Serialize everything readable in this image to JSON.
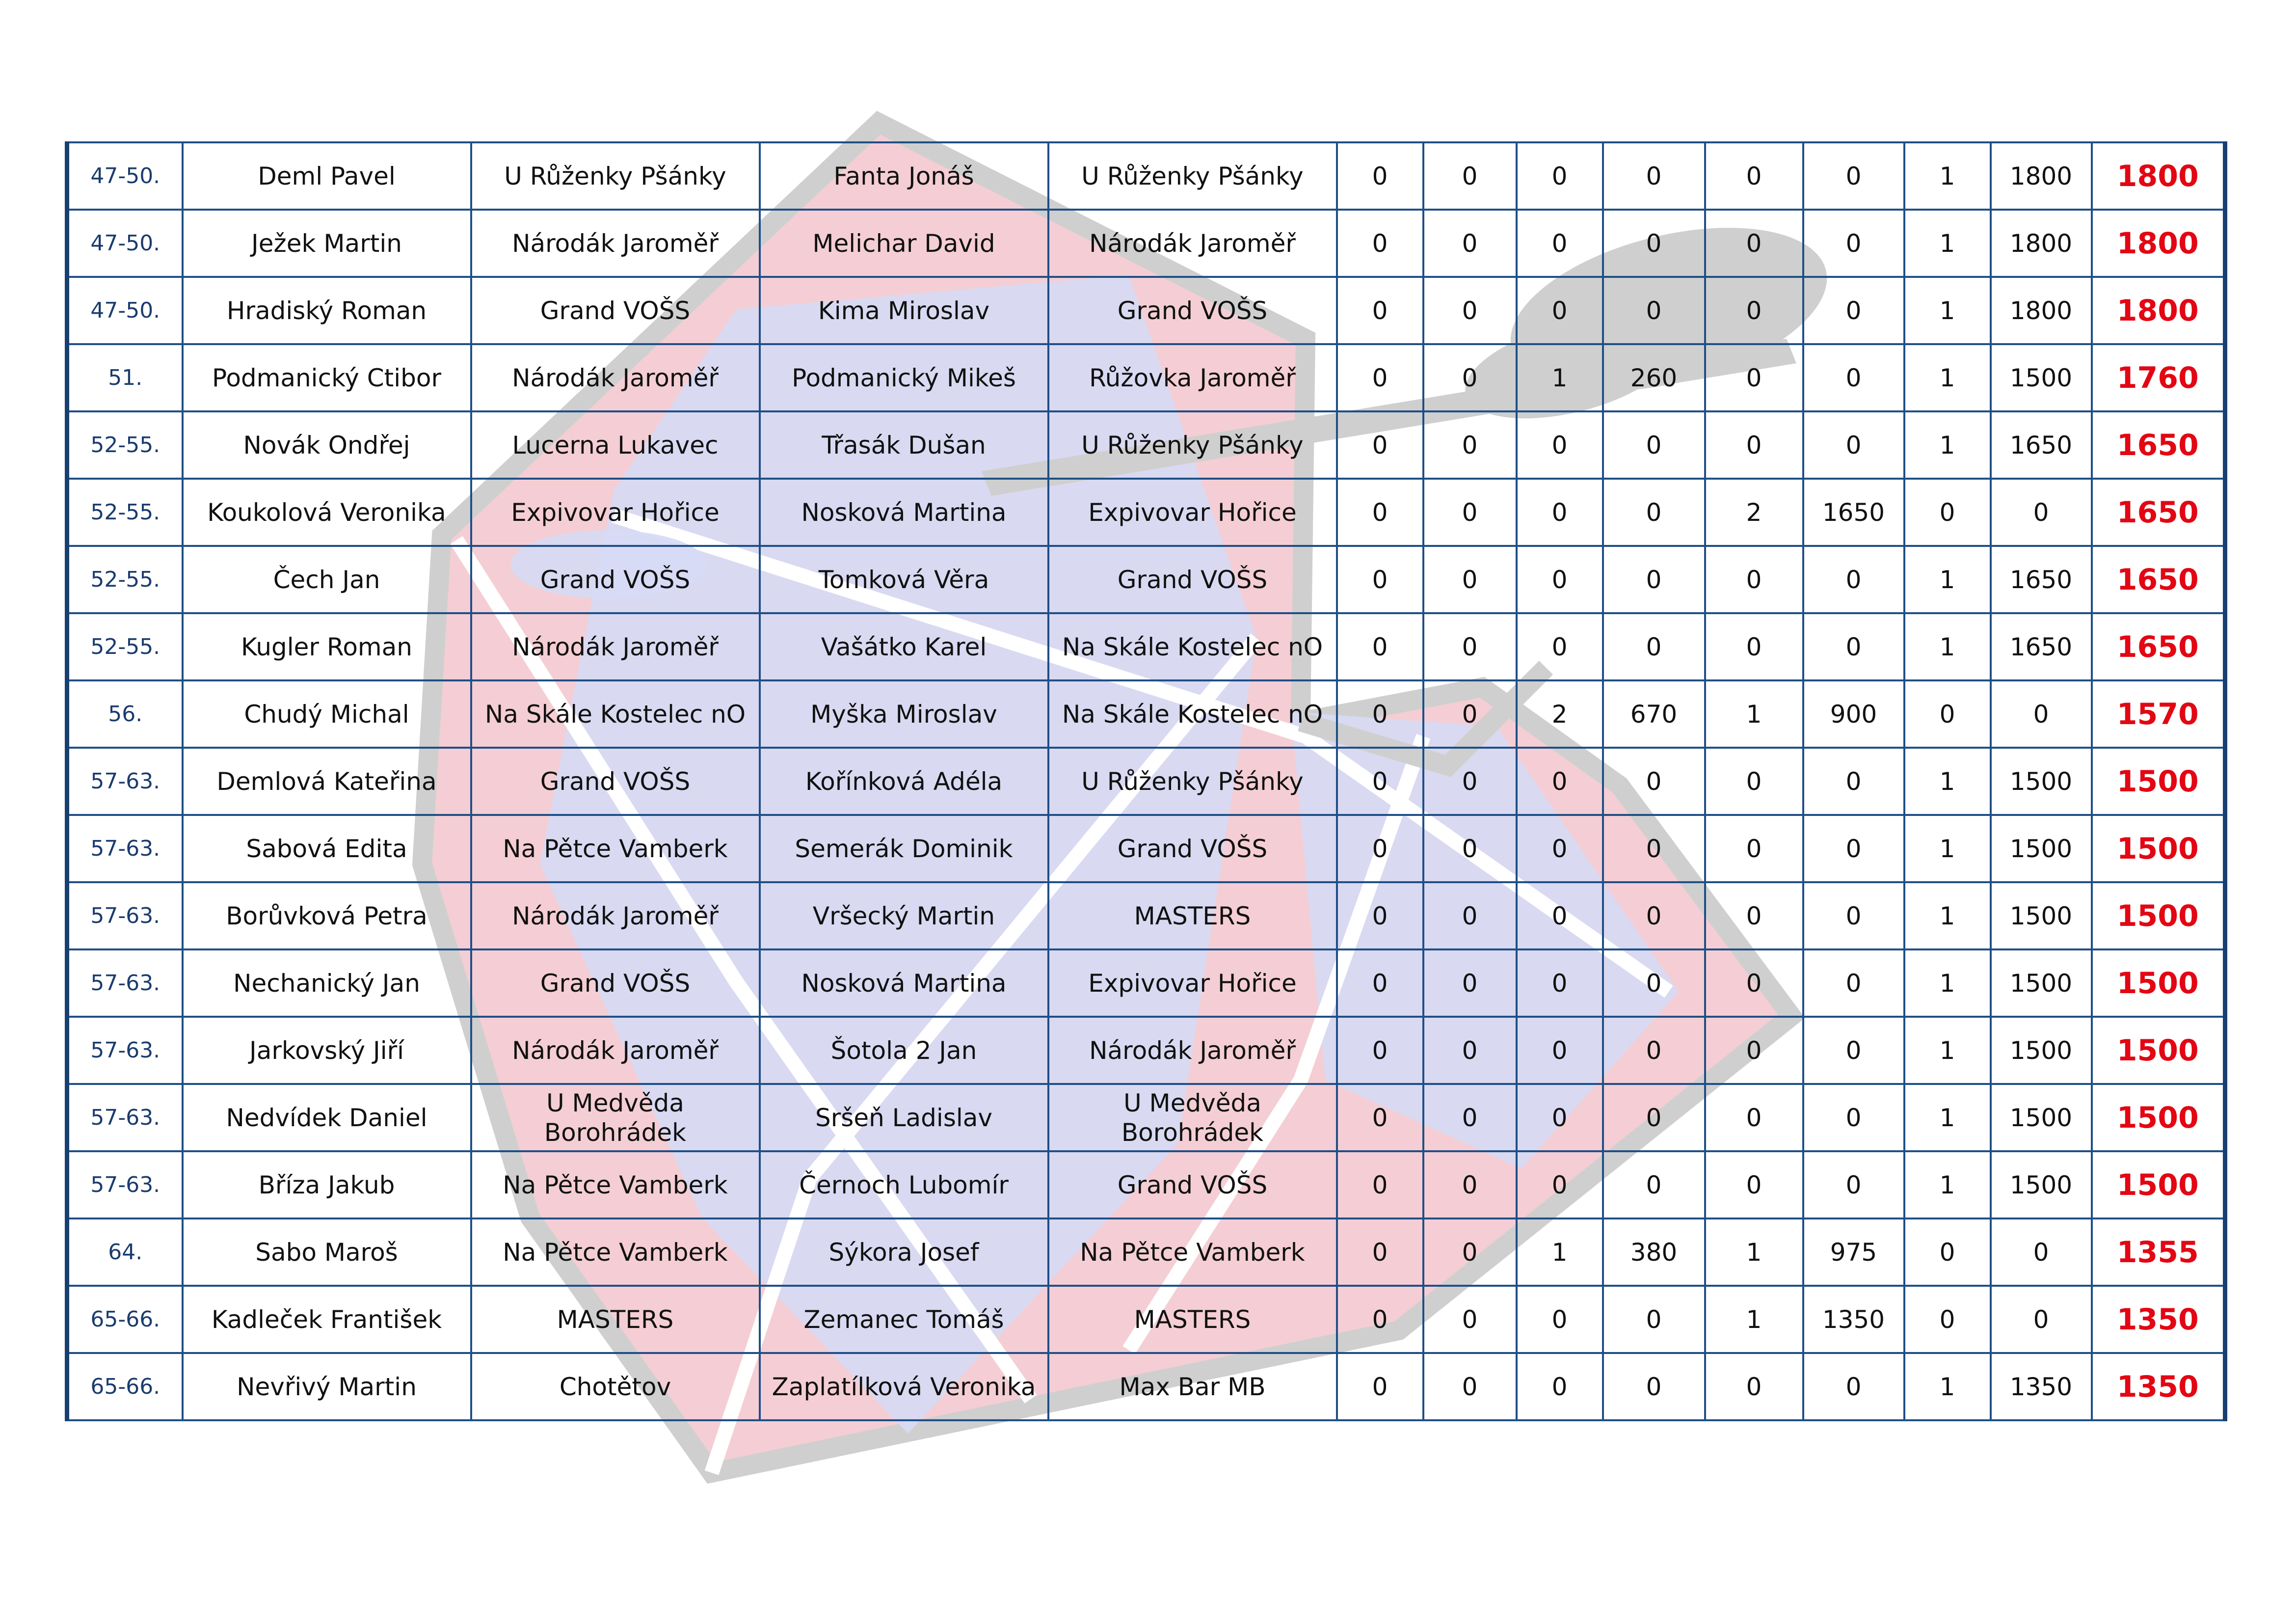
{
  "rows": [
    {
      "rank": "47-50.",
      "player": "Deml Pavel",
      "team": "U Růženky Pšánky",
      "opponent": "Fanta Jonáš",
      "opponent_team": "U Růženky Pšánky",
      "scores": [
        "0",
        "0",
        "0",
        "0",
        "0",
        "0",
        "1",
        "1800"
      ],
      "total": "1800"
    },
    {
      "rank": "47-50.",
      "player": "Ježek Martin",
      "team": "Národák Jaroměř",
      "opponent": "Melichar David",
      "opponent_team": "Národák Jaroměř",
      "scores": [
        "0",
        "0",
        "0",
        "0",
        "0",
        "0",
        "1",
        "1800"
      ],
      "total": "1800"
    },
    {
      "rank": "47-50.",
      "player": "Hradiský Roman",
      "team": "Grand VOŠS",
      "opponent": "Kima Miroslav",
      "opponent_team": "Grand VOŠS",
      "scores": [
        "0",
        "0",
        "0",
        "0",
        "0",
        "0",
        "1",
        "1800"
      ],
      "total": "1800"
    },
    {
      "rank": "51.",
      "player": "Podmanický Ctibor",
      "team": "Národák Jaroměř",
      "opponent": "Podmanický Mikeš",
      "opponent_team": "Růžovka Jaroměř",
      "scores": [
        "0",
        "0",
        "1",
        "260",
        "0",
        "0",
        "1",
        "1500"
      ],
      "total": "1760"
    },
    {
      "rank": "52-55.",
      "player": "Novák Ondřej",
      "team": "Lucerna Lukavec",
      "opponent": "Třasák Dušan",
      "opponent_team": "U Růženky Pšánky",
      "scores": [
        "0",
        "0",
        "0",
        "0",
        "0",
        "0",
        "1",
        "1650"
      ],
      "total": "1650"
    },
    {
      "rank": "52-55.",
      "player": "Koukolová Veronika",
      "team": "Expivovar Hořice",
      "opponent": "Nosková Martina",
      "opponent_team": "Expivovar Hořice",
      "scores": [
        "0",
        "0",
        "0",
        "0",
        "2",
        "1650",
        "0",
        "0"
      ],
      "total": "1650"
    },
    {
      "rank": "52-55.",
      "player": "Čech Jan",
      "team": "Grand VOŠS",
      "opponent": "Tomková Věra",
      "opponent_team": "Grand VOŠS",
      "scores": [
        "0",
        "0",
        "0",
        "0",
        "0",
        "0",
        "1",
        "1650"
      ],
      "total": "1650"
    },
    {
      "rank": "52-55.",
      "player": "Kugler Roman",
      "team": "Národák Jaroměř",
      "opponent": "Vašátko Karel",
      "opponent_team": "Na Skále Kostelec nO",
      "scores": [
        "0",
        "0",
        "0",
        "0",
        "0",
        "0",
        "1",
        "1650"
      ],
      "total": "1650"
    },
    {
      "rank": "56.",
      "player": "Chudý Michal",
      "team": "Na Skále Kostelec nO",
      "opponent": "Myška Miroslav",
      "opponent_team": "Na Skále Kostelec nO",
      "scores": [
        "0",
        "0",
        "2",
        "670",
        "1",
        "900",
        "0",
        "0"
      ],
      "total": "1570"
    },
    {
      "rank": "57-63.",
      "player": "Demlová Kateřina",
      "team": "Grand VOŠS",
      "opponent": "Kořínková Adéla",
      "opponent_team": "U Růženky Pšánky",
      "scores": [
        "0",
        "0",
        "0",
        "0",
        "0",
        "0",
        "1",
        "1500"
      ],
      "total": "1500"
    },
    {
      "rank": "57-63.",
      "player": "Sabová Edita",
      "team": "Na Pětce Vamberk",
      "opponent": "Semerák Dominik",
      "opponent_team": "Grand VOŠS",
      "scores": [
        "0",
        "0",
        "0",
        "0",
        "0",
        "0",
        "1",
        "1500"
      ],
      "total": "1500"
    },
    {
      "rank": "57-63.",
      "player": "Borůvková Petra",
      "team": "Národák Jaroměř",
      "opponent": "Vršecký Martin",
      "opponent_team": "MASTERS",
      "scores": [
        "0",
        "0",
        "0",
        "0",
        "0",
        "0",
        "1",
        "1500"
      ],
      "total": "1500"
    },
    {
      "rank": "57-63.",
      "player": "Nechanický Jan",
      "team": "Grand VOŠS",
      "opponent": "Nosková Martina",
      "opponent_team": "Expivovar Hořice",
      "scores": [
        "0",
        "0",
        "0",
        "0",
        "0",
        "0",
        "1",
        "1500"
      ],
      "total": "1500"
    },
    {
      "rank": "57-63.",
      "player": "Jarkovský Jiří",
      "team": "Národák Jaroměř",
      "opponent": "Šotola 2 Jan",
      "opponent_team": "Národák Jaroměř",
      "scores": [
        "0",
        "0",
        "0",
        "0",
        "0",
        "0",
        "1",
        "1500"
      ],
      "total": "1500"
    },
    {
      "rank": "57-63.",
      "player": "Nedvídek Daniel",
      "team": "U Medvěda Borohrádek",
      "opponent": "Sršeň Ladislav",
      "opponent_team": "U Medvěda Borohrádek",
      "scores": [
        "0",
        "0",
        "0",
        "0",
        "0",
        "0",
        "1",
        "1500"
      ],
      "total": "1500"
    },
    {
      "rank": "57-63.",
      "player": "Bříza Jakub",
      "team": "Na Pětce Vamberk",
      "opponent": "Černoch Lubomír",
      "opponent_team": "Grand VOŠS",
      "scores": [
        "0",
        "0",
        "0",
        "0",
        "0",
        "0",
        "1",
        "1500"
      ],
      "total": "1500"
    },
    {
      "rank": "64.",
      "player": "Sabo Maroš",
      "team": "Na Pětce Vamberk",
      "opponent": "Sýkora Josef",
      "opponent_team": "Na Pětce Vamberk",
      "scores": [
        "0",
        "0",
        "1",
        "380",
        "1",
        "975",
        "0",
        "0"
      ],
      "total": "1355"
    },
    {
      "rank": "65-66.",
      "player": "Kadleček František",
      "team": "MASTERS",
      "opponent": "Zemanec Tomáš",
      "opponent_team": "MASTERS",
      "scores": [
        "0",
        "0",
        "0",
        "0",
        "1",
        "1350",
        "0",
        "0"
      ],
      "total": "1350"
    },
    {
      "rank": "65-66.",
      "player": "Nevřivý Martin",
      "team": "Chotětov",
      "opponent": "Zaplatílková Veronika",
      "opponent_team": "Max Bar MB",
      "scores": [
        "0",
        "0",
        "0",
        "0",
        "0",
        "0",
        "1",
        "1350"
      ],
      "total": "1350"
    }
  ],
  "colors": {
    "border": "#1f4f86",
    "rank_text": "#1b3c6e",
    "total_text": "#e30613",
    "watermark_red": "#f2c6cc",
    "watermark_blue": "#d6daf5",
    "watermark_gray": "#cfcfcf"
  },
  "watermark": {
    "icon": "dart-logo-icon"
  }
}
